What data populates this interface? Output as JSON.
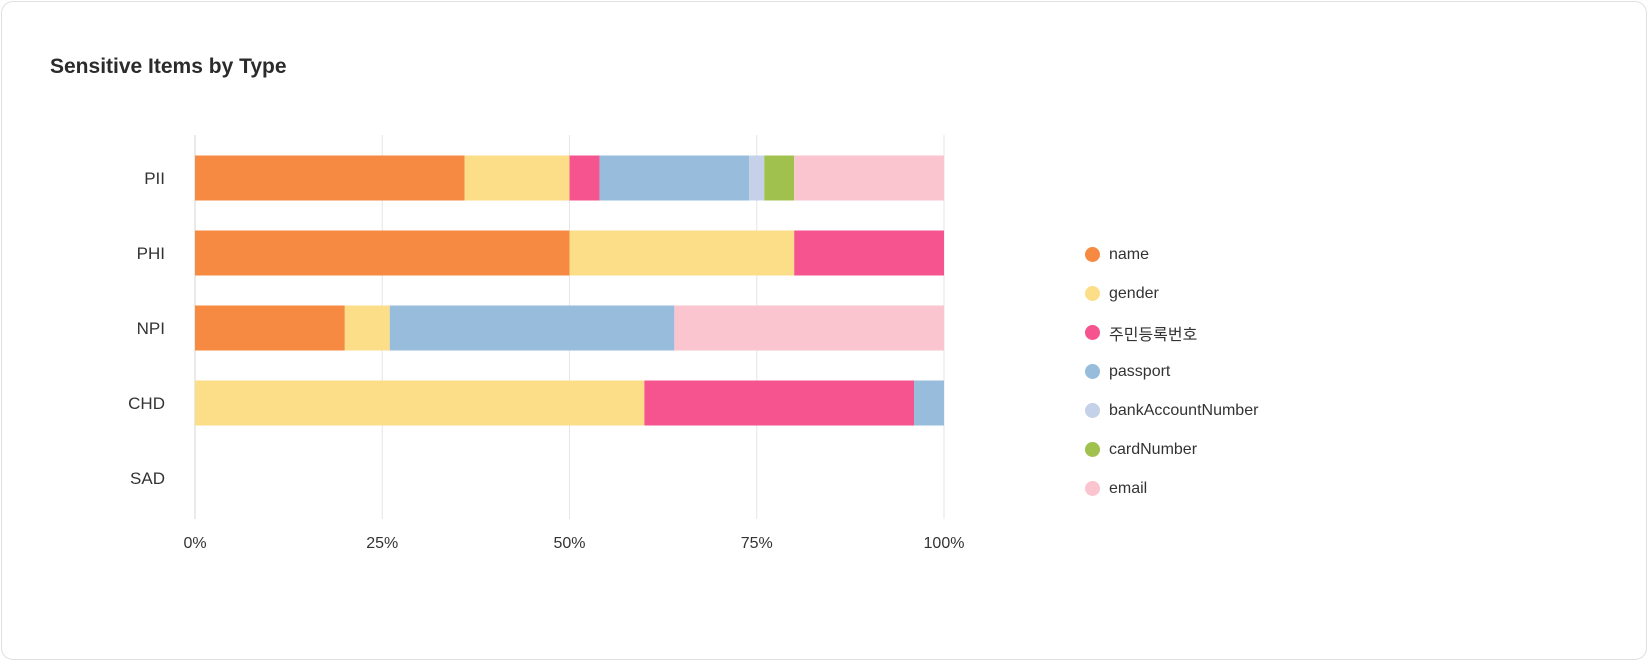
{
  "title": "Sensitive Items by Type",
  "chart_data": {
    "type": "bar",
    "orientation": "horizontal",
    "stacked": "percent",
    "title": "Sensitive Items by Type",
    "categories": [
      "PII",
      "PHI",
      "NPI",
      "CHD",
      "SAD"
    ],
    "xlim": [
      0,
      100
    ],
    "x_ticks": [
      "0%",
      "25%",
      "50%",
      "75%",
      "100%"
    ],
    "x_tick_values": [
      0,
      25,
      50,
      75,
      100
    ],
    "grid": true,
    "legend_position": "right",
    "series": [
      {
        "name": "name",
        "color": "#F68A42",
        "values": [
          36,
          50,
          20,
          0,
          0
        ]
      },
      {
        "name": "gender",
        "color": "#FDDE88",
        "values": [
          14,
          30,
          6,
          60,
          0
        ]
      },
      {
        "name": "주민등록번호",
        "color": "#F5548E",
        "values": [
          4,
          20,
          0,
          36,
          0
        ]
      },
      {
        "name": "passport",
        "color": "#97BCDC",
        "values": [
          20,
          0,
          38,
          4,
          0
        ]
      },
      {
        "name": "bankAccountNumber",
        "color": "#C5D1E8",
        "values": [
          2,
          0,
          0,
          0,
          0
        ]
      },
      {
        "name": "cardNumber",
        "color": "#A0C14D",
        "values": [
          4,
          0,
          0,
          0,
          0
        ]
      },
      {
        "name": "email",
        "color": "#FAC5CF",
        "values": [
          20,
          0,
          36,
          0,
          0
        ]
      }
    ]
  }
}
